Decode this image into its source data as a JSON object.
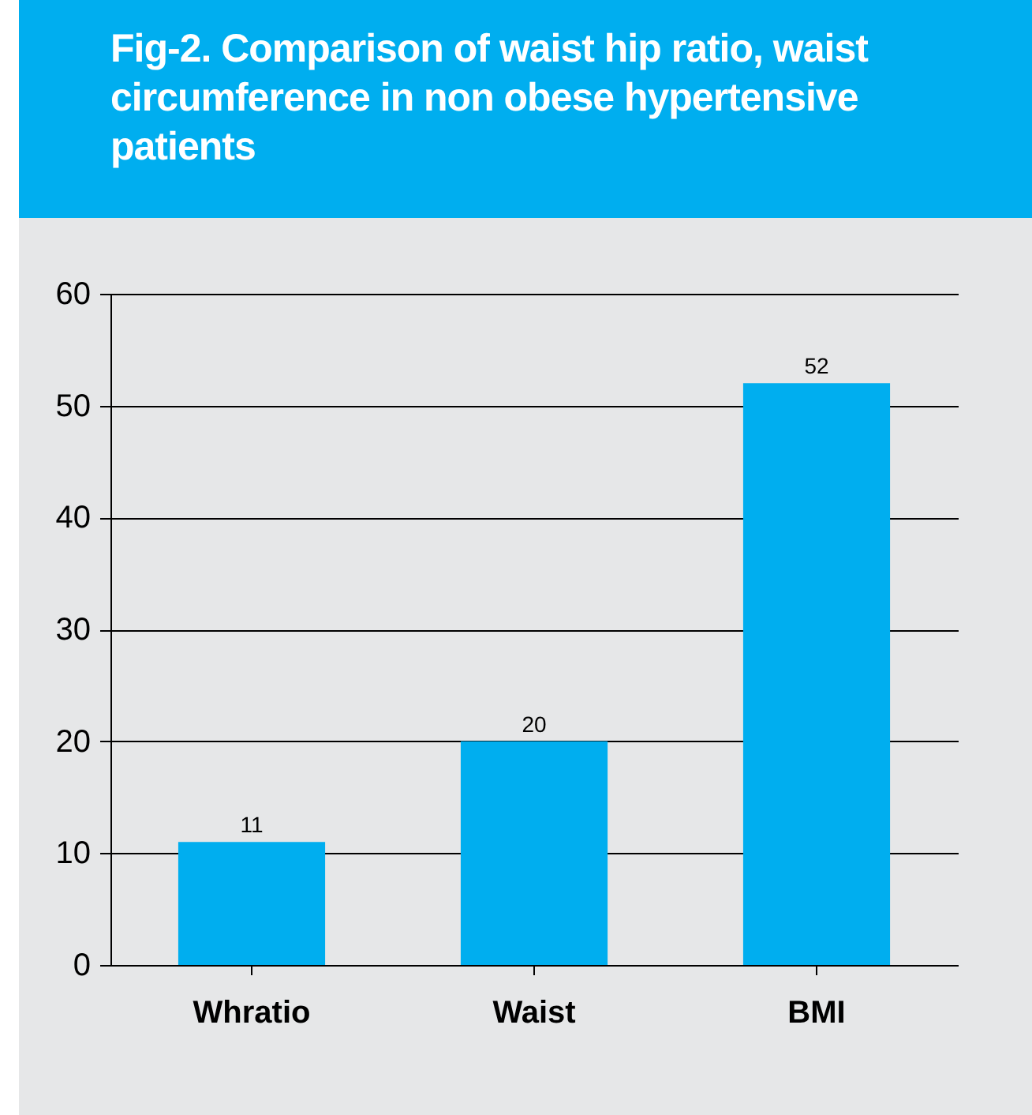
{
  "chart_data": {
    "type": "bar",
    "title": "Fig-2. Comparison of waist hip ratio, waist circumference in non obese hypertensive patients",
    "categories": [
      "Whratio",
      "Waist",
      "BMI"
    ],
    "values": [
      11,
      20,
      52
    ],
    "color": "#00aeef",
    "ylim": [
      0,
      60
    ],
    "yticks": [
      0,
      10,
      20,
      30,
      40,
      50,
      60
    ],
    "grid": "y",
    "data_labels": true
  }
}
